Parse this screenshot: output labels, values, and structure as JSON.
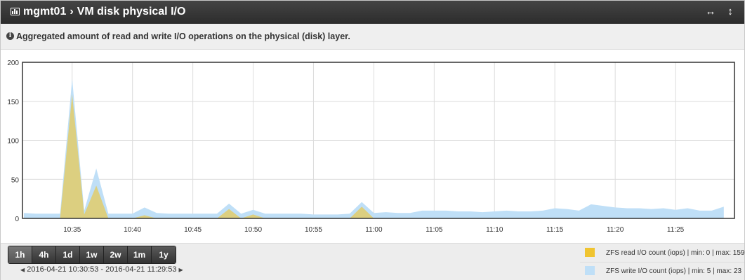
{
  "header": {
    "host": "mgmt01",
    "separator": "›",
    "title": "VM disk physical I/O",
    "expand_icon": "arrows-horizontal-icon",
    "resize_icon": "arrows-vertical-icon"
  },
  "info": {
    "text": "Aggregated amount of read and write I/O operations on the physical (disk) layer."
  },
  "time_ranges": [
    {
      "label": "1h",
      "active": true
    },
    {
      "label": "4h",
      "active": false
    },
    {
      "label": "1d",
      "active": false
    },
    {
      "label": "1w",
      "active": false
    },
    {
      "label": "2w",
      "active": false
    },
    {
      "label": "1m",
      "active": false
    },
    {
      "label": "1y",
      "active": false
    }
  ],
  "period": {
    "text": "2016-04-21 10:30:53 - 2016-04-21 11:29:53"
  },
  "legend": [
    {
      "label": "ZFS read I/O count (iops) | min: 0 | max: 159",
      "color": "#f0c430"
    },
    {
      "label": "ZFS write I/O count (iops) | min: 5 | max: 23",
      "color": "#bfdff7"
    }
  ],
  "chart_data": {
    "type": "area",
    "stacked": true,
    "x_start": "10:30:53",
    "x_end": "11:29:53",
    "y_ticks": [
      0,
      50,
      100,
      150,
      200
    ],
    "ylim": [
      0,
      200
    ],
    "x_tick_labels": [
      "10:35",
      "10:40",
      "10:45",
      "10:50",
      "10:55",
      "11:00",
      "11:05",
      "11:10",
      "11:15",
      "11:20",
      "11:25"
    ],
    "x_tick_minutes": [
      35,
      40,
      45,
      50,
      55,
      60,
      65,
      70,
      75,
      80,
      85
    ],
    "grid": true,
    "series": [
      {
        "name": "ZFS read I/O count (iops)",
        "color": "#f0c430",
        "minutes": [
          31,
          32,
          33,
          34,
          35,
          36,
          37,
          38,
          39,
          40,
          41,
          42,
          43,
          47,
          48,
          49,
          50,
          51,
          52,
          58,
          59,
          60,
          61,
          62,
          89
        ],
        "values": [
          0,
          0,
          0,
          0,
          159,
          5,
          42,
          0,
          0,
          0,
          4,
          0,
          0,
          0,
          12,
          0,
          5,
          0,
          0,
          0,
          15,
          0,
          0,
          0,
          0
        ]
      },
      {
        "name": "ZFS write I/O count (iops)",
        "color": "#bfdff7",
        "minutes": [
          31,
          32,
          33,
          34,
          35,
          36,
          37,
          38,
          39,
          40,
          41,
          42,
          43,
          44,
          45,
          46,
          47,
          48,
          49,
          50,
          51,
          52,
          53,
          54,
          55,
          56,
          57,
          58,
          59,
          60,
          61,
          62,
          63,
          64,
          65,
          66,
          67,
          68,
          69,
          70,
          71,
          72,
          73,
          74,
          75,
          76,
          77,
          78,
          79,
          80,
          81,
          82,
          83,
          84,
          85,
          86,
          87,
          88,
          89
        ],
        "values": [
          7,
          6,
          6,
          6,
          20,
          5,
          22,
          6,
          6,
          6,
          10,
          7,
          6,
          6,
          6,
          6,
          6,
          7,
          6,
          6,
          6,
          6,
          6,
          6,
          5,
          5,
          5,
          6,
          6,
          7,
          8,
          7,
          7,
          10,
          10,
          10,
          9,
          9,
          8,
          9,
          10,
          9,
          9,
          10,
          13,
          12,
          10,
          18,
          16,
          14,
          13,
          13,
          12,
          13,
          11,
          13,
          10,
          10,
          15
        ]
      }
    ]
  }
}
